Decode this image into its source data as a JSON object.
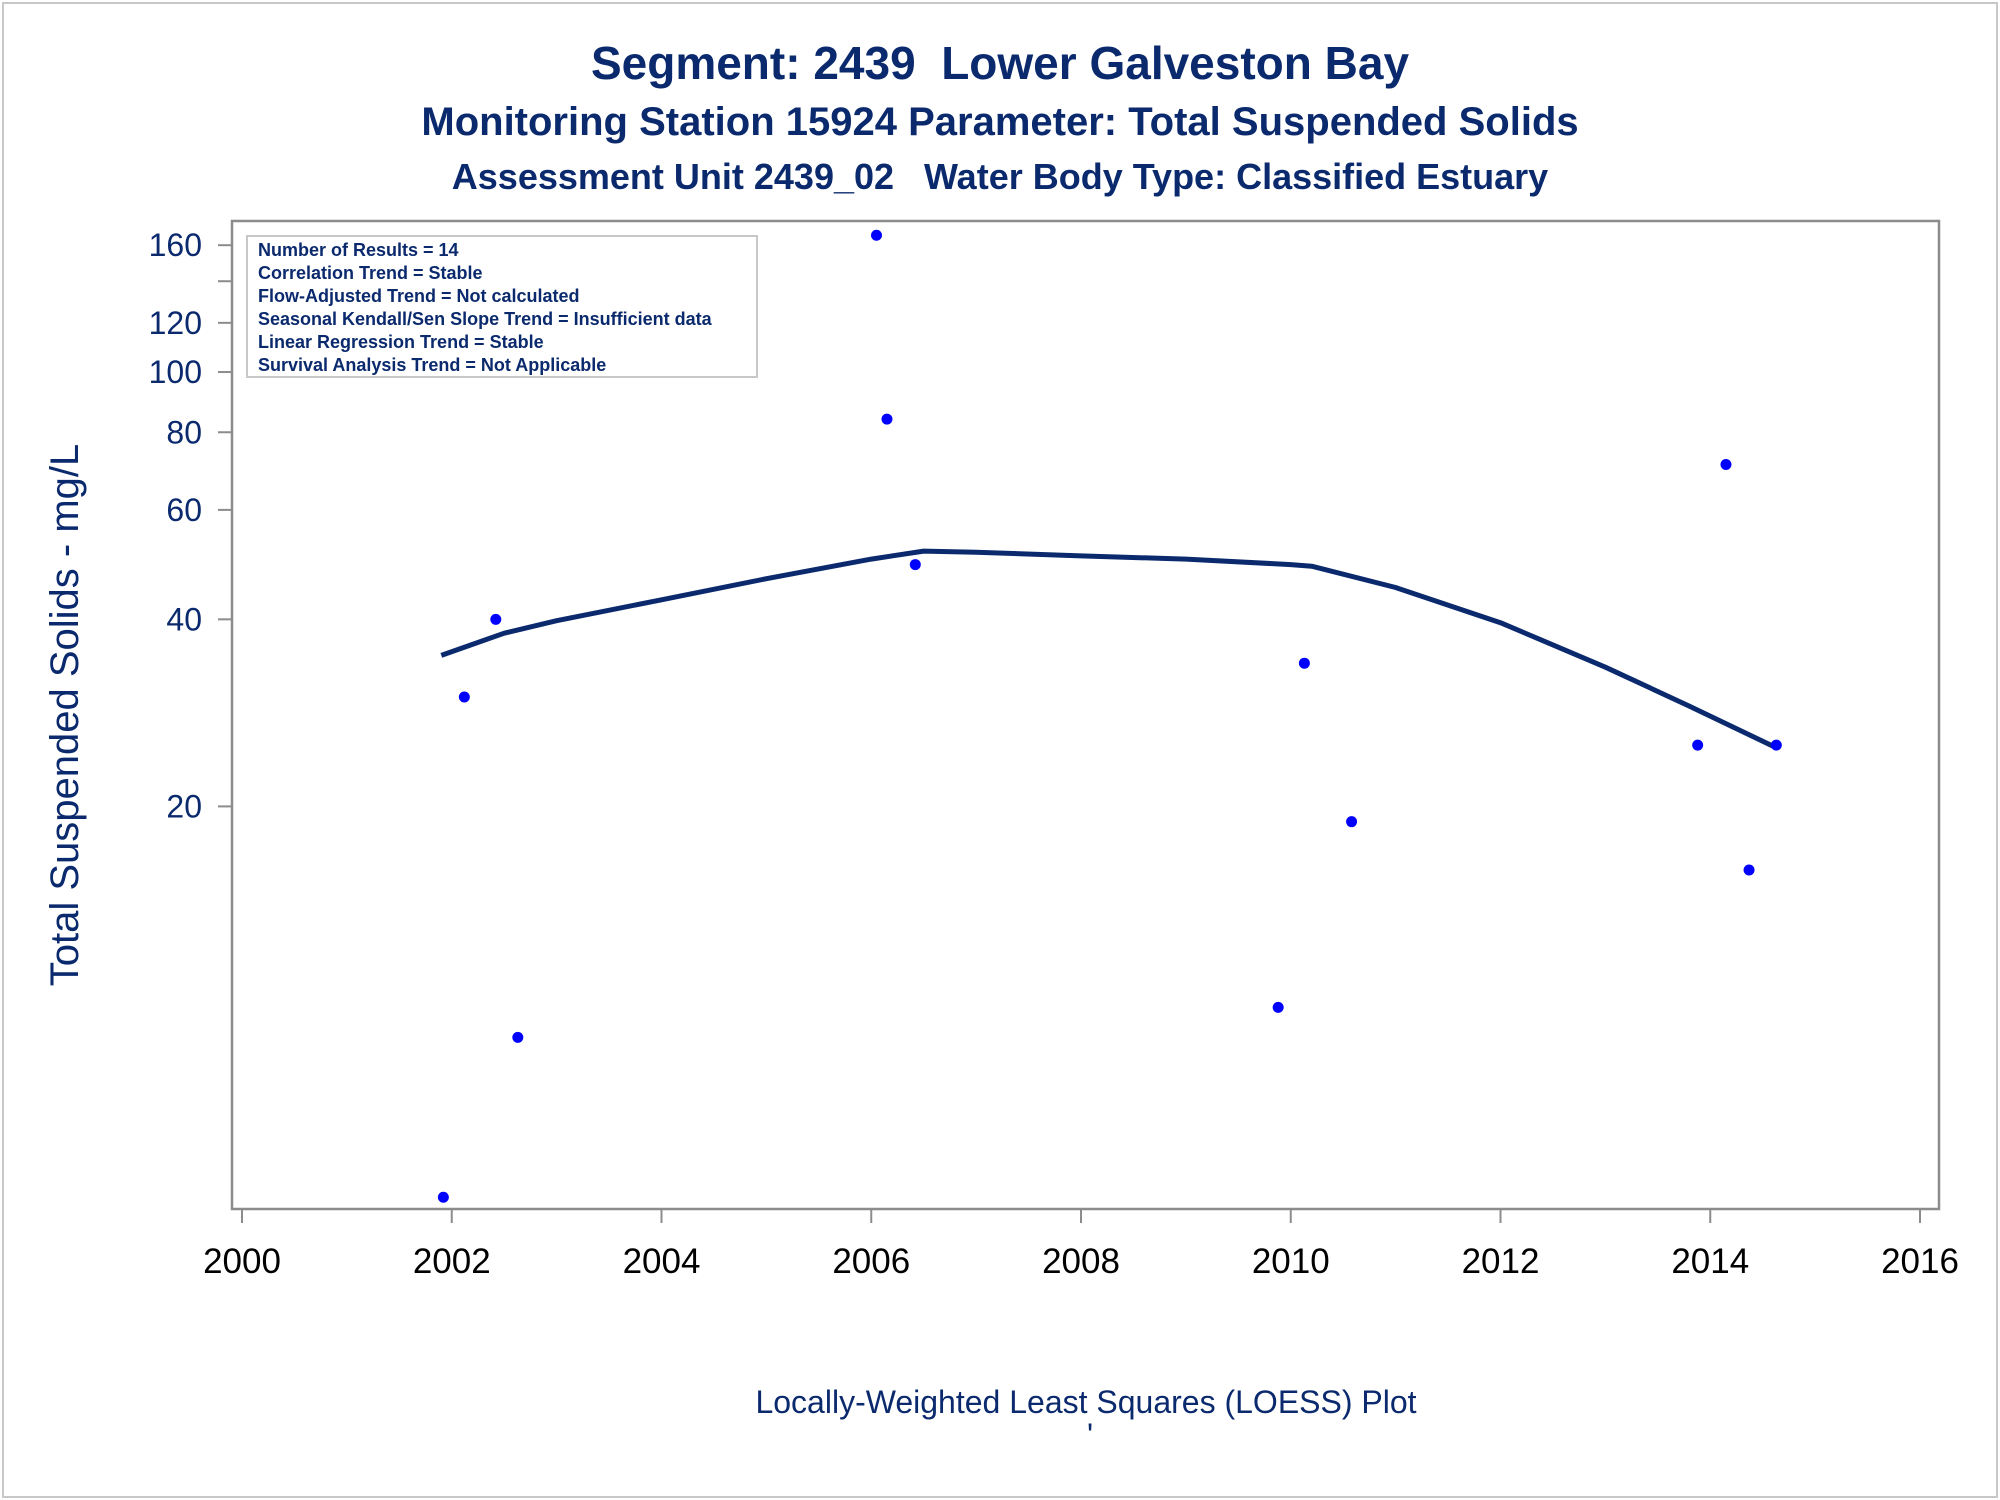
{
  "chart_data": {
    "type": "scatter",
    "title": "Segment: 2439  Lower Galveston Bay",
    "subtitle": "Monitoring Station 15924 Parameter: Total Suspended Solids",
    "subtitle2": "Assessment Unit 2439_02   Water Body Type: Classified Estuary",
    "ylabel": "Total Suspended Solids - mg/L",
    "xlabel": "",
    "footnote": "Locally-Weighted Least Squares (LOESS) Plot",
    "footnote_mark": "'",
    "y_scale": "log",
    "xlim": [
      2000,
      2016
    ],
    "ylim": [
      4.5,
      175
    ],
    "x_ticks": [
      2000,
      2002,
      2004,
      2006,
      2008,
      2010,
      2012,
      2014,
      2016
    ],
    "y_ticks": [
      20,
      40,
      60,
      80,
      100,
      120,
      160
    ],
    "y_minor_ticks": [
      140
    ],
    "grid": false,
    "stats_box_position": "top-left",
    "stats": [
      "Number of Results = 14",
      "Correlation Trend = Stable",
      "Flow-Adjusted Trend = Not calculated",
      "Seasonal Kendall/Sen Slope Trend = Insufficient data",
      "Linear Regression Trend = Stable",
      "Survival Analysis Trend = Not Applicable"
    ],
    "series": [
      {
        "type": "scatter",
        "color": "#0000ff",
        "x": [
          2001.92,
          2002.12,
          2002.42,
          2002.63,
          2006.05,
          2006.15,
          2006.42,
          2009.88,
          2010.13,
          2010.58,
          2013.88,
          2014.15,
          2014.37,
          2014.63
        ],
        "y": [
          4.7,
          30,
          40,
          8.5,
          166,
          84,
          49,
          9.5,
          34,
          18.9,
          25.1,
          71,
          15.8,
          25.1
        ]
      },
      {
        "type": "line",
        "color": "#0b2a6e",
        "x": [
          2001.9,
          2002.5,
          2003,
          2004,
          2005,
          2006,
          2006.5,
          2007,
          2008,
          2009,
          2010,
          2010.2,
          2011,
          2012,
          2013,
          2013.8,
          2014.6
        ],
        "y": [
          35,
          38,
          39.8,
          43,
          46.5,
          50,
          51.5,
          51.3,
          50.6,
          50,
          49,
          48.7,
          45,
          39.5,
          33.5,
          29,
          25
        ]
      }
    ]
  }
}
